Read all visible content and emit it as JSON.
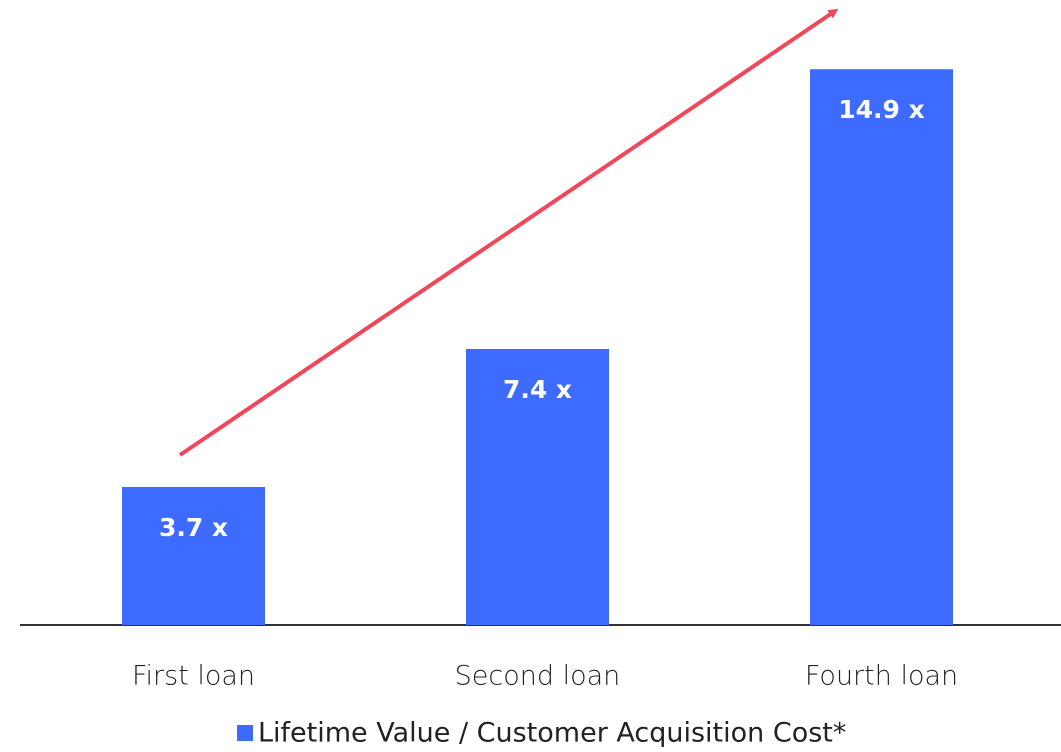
{
  "chart_data": {
    "type": "bar",
    "categories": [
      "First loan",
      "Second loan",
      "Fourth loan"
    ],
    "series": [
      {
        "name": "Lifetime Value / Customer Acquisition Cost*",
        "color": "#3d6bff",
        "values": [
          3.7,
          7.4,
          14.9
        ],
        "value_labels": [
          "3.7 x",
          "7.4 x",
          "14.9 x"
        ]
      }
    ]
  }
}
